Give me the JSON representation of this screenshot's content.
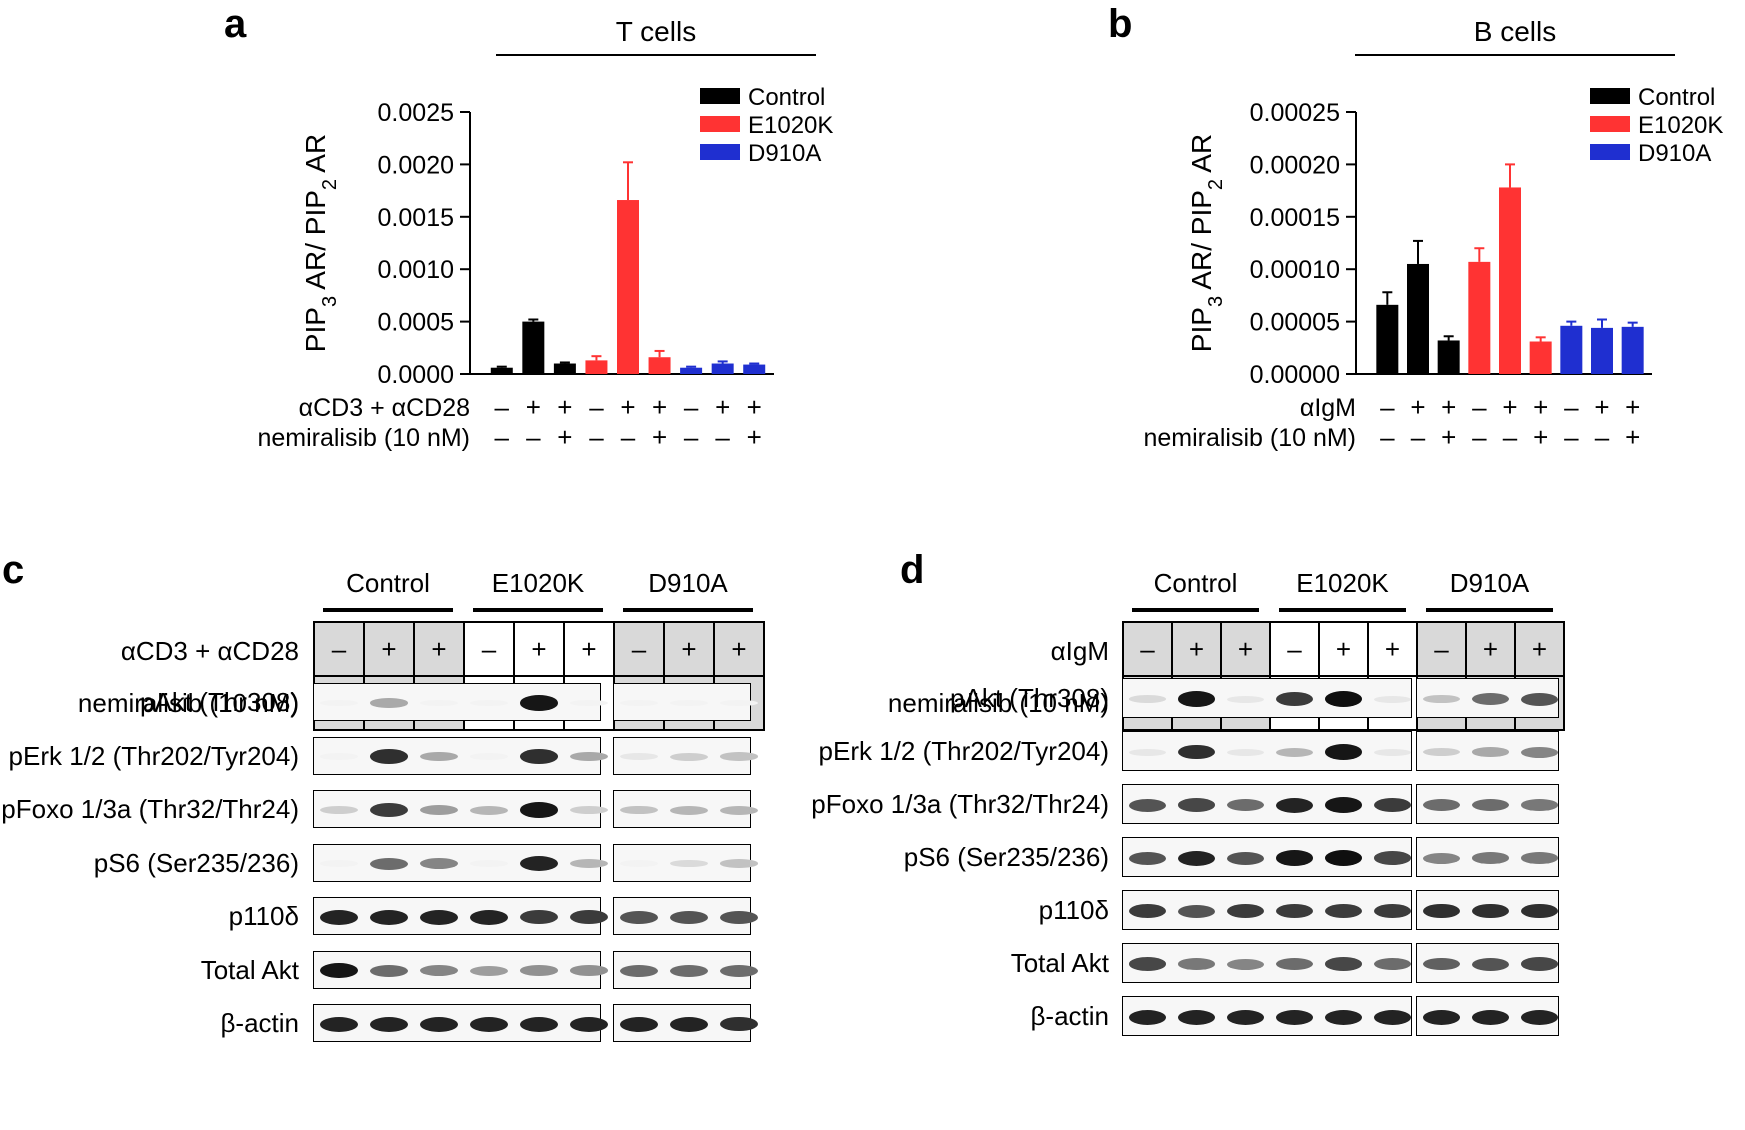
{
  "panels": {
    "a": {
      "letter": "a",
      "title": "T cells"
    },
    "b": {
      "letter": "b",
      "title": "B cells"
    },
    "c": {
      "letter": "c"
    },
    "d": {
      "letter": "d"
    }
  },
  "chart_data": [
    {
      "type": "bar",
      "panel": "a",
      "title": "T cells",
      "ylabel": "PIP3 AR/ PIP2 AR",
      "ylim": [
        0,
        0.0025
      ],
      "yticks": [
        "0.0000",
        "0.0005",
        "0.0010",
        "0.0015",
        "0.0020",
        "0.0025"
      ],
      "legend": [
        {
          "name": "Control",
          "color": "#000000"
        },
        {
          "name": "E1020K",
          "color": "#ff3333"
        },
        {
          "name": "D910A",
          "color": "#1f2fd0"
        }
      ],
      "legend_position": "top-right",
      "bars": [
        {
          "group": "Control",
          "value": 6e-05,
          "error": 1e-05
        },
        {
          "group": "Control",
          "value": 0.0005,
          "error": 2e-05
        },
        {
          "group": "Control",
          "value": 0.0001,
          "error": 1e-05
        },
        {
          "group": "E1020K",
          "value": 0.00013,
          "error": 4e-05
        },
        {
          "group": "E1020K",
          "value": 0.00166,
          "error": 0.00036
        },
        {
          "group": "E1020K",
          "value": 0.00016,
          "error": 6e-05
        },
        {
          "group": "D910A",
          "value": 6e-05,
          "error": 1e-05
        },
        {
          "group": "D910A",
          "value": 0.0001,
          "error": 2e-05
        },
        {
          "group": "D910A",
          "value": 9e-05,
          "error": 1e-05
        }
      ],
      "conditions": [
        {
          "label": "αCD3 + αCD28",
          "signs": [
            "–",
            "+",
            "+",
            "–",
            "+",
            "+",
            "–",
            "+",
            "+"
          ]
        },
        {
          "label": "nemiralisib (10 nM)",
          "signs": [
            "–",
            "–",
            "+",
            "–",
            "–",
            "+",
            "–",
            "–",
            "+"
          ]
        }
      ]
    },
    {
      "type": "bar",
      "panel": "b",
      "title": "B cells",
      "ylabel": "PIP3 AR/ PIP2 AR",
      "ylim": [
        0,
        0.00025
      ],
      "yticks": [
        "0.00000",
        "0.00005",
        "0.00010",
        "0.00015",
        "0.00020",
        "0.00025"
      ],
      "legend": [
        {
          "name": "Control",
          "color": "#000000"
        },
        {
          "name": "E1020K",
          "color": "#ff3333"
        },
        {
          "name": "D910A",
          "color": "#1f2fd0"
        }
      ],
      "legend_position": "top-right",
      "bars": [
        {
          "group": "Control",
          "value": 6.6e-05,
          "error": 1.2e-05
        },
        {
          "group": "Control",
          "value": 0.000105,
          "error": 2.2e-05
        },
        {
          "group": "Control",
          "value": 3.2e-05,
          "error": 4e-06
        },
        {
          "group": "E1020K",
          "value": 0.000107,
          "error": 1.3e-05
        },
        {
          "group": "E1020K",
          "value": 0.000178,
          "error": 2.2e-05
        },
        {
          "group": "E1020K",
          "value": 3.1e-05,
          "error": 4e-06
        },
        {
          "group": "D910A",
          "value": 4.6e-05,
          "error": 4e-06
        },
        {
          "group": "D910A",
          "value": 4.4e-05,
          "error": 8e-06
        },
        {
          "group": "D910A",
          "value": 4.5e-05,
          "error": 4e-06
        }
      ],
      "conditions": [
        {
          "label": "αIgM",
          "signs": [
            "–",
            "+",
            "+",
            "–",
            "+",
            "+",
            "–",
            "+",
            "+"
          ]
        },
        {
          "label": "nemiralisib (10 nM)",
          "signs": [
            "–",
            "–",
            "+",
            "–",
            "–",
            "+",
            "–",
            "–",
            "+"
          ]
        }
      ]
    }
  ],
  "blots": {
    "c": {
      "groups": [
        "Control",
        "E1020K",
        "D910A"
      ],
      "stim_label": "αCD3 + αCD28",
      "inhib_label": "nemiralisib (10 nM)",
      "stim_signs": [
        "–",
        "+",
        "+",
        "–",
        "+",
        "+",
        "–",
        "+",
        "+"
      ],
      "inhib_signs": [
        "–",
        "–",
        "+",
        "–",
        "–",
        "+",
        "–",
        "–",
        "+"
      ],
      "rows": [
        {
          "label": "pAkt (Thr308)",
          "intensity": [
            0.05,
            0.35,
            0.05,
            0.05,
            0.95,
            0.05,
            0.05,
            0.05,
            0.05
          ]
        },
        {
          "label": "pErk 1/2 (Thr202/Tyr204)",
          "intensity": [
            0.05,
            0.85,
            0.35,
            0.05,
            0.85,
            0.35,
            0.1,
            0.2,
            0.25
          ]
        },
        {
          "label": "pFoxo 1/3a (Thr32/Thr24)",
          "intensity": [
            0.2,
            0.8,
            0.4,
            0.3,
            0.95,
            0.2,
            0.25,
            0.3,
            0.3
          ]
        },
        {
          "label": "pS6 (Ser235/236)",
          "intensity": [
            0.05,
            0.6,
            0.5,
            0.05,
            0.9,
            0.3,
            0.05,
            0.15,
            0.25
          ]
        },
        {
          "label": "p110δ",
          "intensity": [
            0.9,
            0.9,
            0.9,
            0.9,
            0.8,
            0.8,
            0.7,
            0.7,
            0.7
          ]
        },
        {
          "label": "Total Akt",
          "intensity": [
            0.95,
            0.6,
            0.5,
            0.4,
            0.45,
            0.45,
            0.6,
            0.6,
            0.6
          ]
        },
        {
          "label": "β-actin",
          "intensity": [
            0.9,
            0.9,
            0.9,
            0.9,
            0.9,
            0.9,
            0.9,
            0.9,
            0.85
          ]
        }
      ]
    },
    "d": {
      "groups": [
        "Control",
        "E1020K",
        "D910A"
      ],
      "stim_label": "αIgM",
      "inhib_label": "nemiralisib (10 nM)",
      "stim_signs": [
        "–",
        "+",
        "+",
        "–",
        "+",
        "+",
        "–",
        "+",
        "+"
      ],
      "inhib_signs": [
        "–",
        "–",
        "+",
        "–",
        "–",
        "+",
        "–",
        "–",
        "+"
      ],
      "rows": [
        {
          "label": "pAkt (Thr308)",
          "intensity": [
            0.15,
            0.95,
            0.1,
            0.8,
            0.98,
            0.1,
            0.25,
            0.6,
            0.7
          ]
        },
        {
          "label": "pErk 1/2 (Thr202/Tyr204)",
          "intensity": [
            0.1,
            0.85,
            0.1,
            0.3,
            0.95,
            0.1,
            0.2,
            0.35,
            0.5
          ]
        },
        {
          "label": "pFoxo 1/3a (Thr32/Thr24)",
          "intensity": [
            0.7,
            0.75,
            0.6,
            0.9,
            0.95,
            0.8,
            0.6,
            0.6,
            0.55
          ]
        },
        {
          "label": "pS6 (Ser235/236)",
          "intensity": [
            0.7,
            0.9,
            0.7,
            0.95,
            0.98,
            0.75,
            0.5,
            0.55,
            0.55
          ]
        },
        {
          "label": "p110δ",
          "intensity": [
            0.8,
            0.7,
            0.8,
            0.8,
            0.8,
            0.8,
            0.85,
            0.85,
            0.85
          ]
        },
        {
          "label": "Total Akt",
          "intensity": [
            0.75,
            0.55,
            0.5,
            0.6,
            0.75,
            0.6,
            0.65,
            0.7,
            0.75
          ]
        },
        {
          "label": "β-actin",
          "intensity": [
            0.9,
            0.9,
            0.9,
            0.9,
            0.9,
            0.9,
            0.9,
            0.9,
            0.9
          ]
        }
      ]
    }
  }
}
